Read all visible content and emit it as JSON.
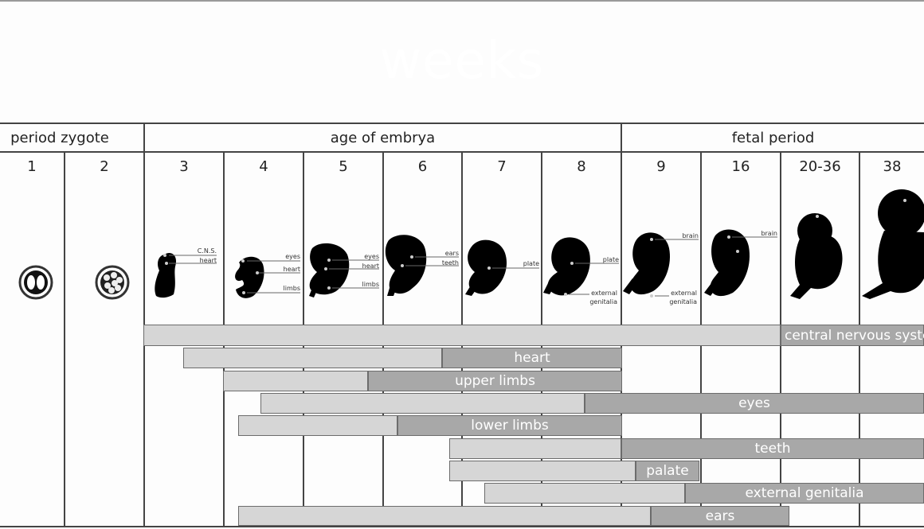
{
  "header": {
    "title": "weeks"
  },
  "periods": [
    {
      "label": "period zygote"
    },
    {
      "label": "age of embrya"
    },
    {
      "label": "fetal period"
    }
  ],
  "weeks": [
    "1",
    "2",
    "3",
    "4",
    "5",
    "6",
    "7",
    "8",
    "9",
    "16",
    "20-36",
    "38"
  ],
  "illustration_labels": {
    "week3": [
      "C.N.S.",
      "heart"
    ],
    "week4": [
      "eyes",
      "heart",
      "limbs"
    ],
    "week5": [
      "eyes",
      "heart",
      "limbs"
    ],
    "week6": [
      "ears",
      "teeth"
    ],
    "week7": [
      "plate"
    ],
    "week8": [
      "plate",
      "external",
      "genitalia"
    ],
    "week9": [
      "brain",
      "external",
      "genitalia"
    ],
    "week16": [
      "brain"
    ]
  },
  "structures": [
    {
      "label": "central nervous system"
    },
    {
      "label": "heart"
    },
    {
      "label": "upper limbs"
    },
    {
      "label": "eyes"
    },
    {
      "label": "lower limbs"
    },
    {
      "label": "teeth"
    },
    {
      "label": "palate"
    },
    {
      "label": "external genitalia"
    },
    {
      "label": "ears"
    }
  ],
  "colors": {
    "light_bar": "#d6d6d6",
    "dark_bar": "#a8a8a8",
    "grid": "#444444"
  }
}
